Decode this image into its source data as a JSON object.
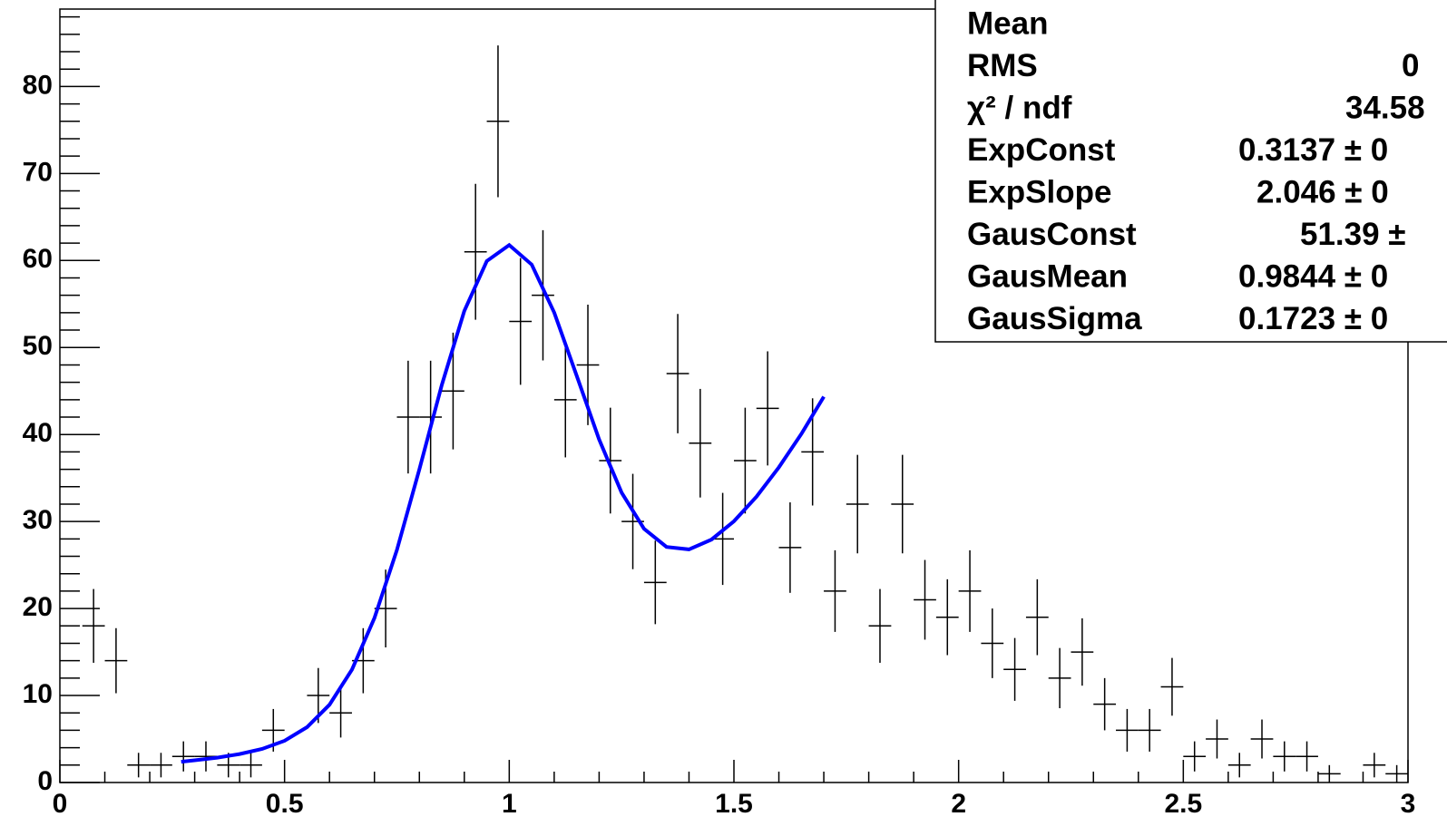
{
  "chart_data": {
    "type": "errorbar",
    "color": "#000000",
    "bin_width": 0.05,
    "x": [
      0.075,
      0.125,
      0.175,
      0.225,
      0.275,
      0.325,
      0.375,
      0.425,
      0.475,
      0.575,
      0.625,
      0.675,
      0.725,
      0.775,
      0.825,
      0.875,
      0.925,
      0.975,
      1.025,
      1.075,
      1.125,
      1.175,
      1.225,
      1.275,
      1.325,
      1.375,
      1.425,
      1.475,
      1.525,
      1.575,
      1.625,
      1.675,
      1.725,
      1.775,
      1.825,
      1.875,
      1.925,
      1.975,
      2.025,
      2.075,
      2.125,
      2.175,
      2.225,
      2.275,
      2.325,
      2.375,
      2.425,
      2.475,
      2.525,
      2.575,
      2.625,
      2.675,
      2.725,
      2.775,
      2.825,
      2.925,
      2.975
    ],
    "values": [
      18,
      14,
      2,
      2,
      3,
      3,
      2,
      2,
      6,
      10,
      8,
      14,
      20,
      42,
      42,
      45,
      61,
      76,
      53,
      56,
      44,
      48,
      37,
      30,
      23,
      47,
      39,
      28,
      37,
      43,
      27,
      38,
      22,
      32,
      18,
      32,
      21,
      19,
      22,
      16,
      13,
      19,
      12,
      15,
      9,
      6,
      6,
      11,
      3,
      5,
      2,
      5,
      3,
      3,
      1,
      2,
      1
    ],
    "errors": [
      4.24,
      3.74,
      1.41,
      1.41,
      1.73,
      1.73,
      1.41,
      1.41,
      2.45,
      3.16,
      2.83,
      3.74,
      4.47,
      6.48,
      6.48,
      6.71,
      7.81,
      8.72,
      7.28,
      7.48,
      6.63,
      6.93,
      6.08,
      5.48,
      4.8,
      6.86,
      6.24,
      5.29,
      6.08,
      6.56,
      5.2,
      6.16,
      4.69,
      5.66,
      4.24,
      5.66,
      4.58,
      4.36,
      4.69,
      4,
      3.61,
      4.36,
      3.46,
      3.87,
      3,
      2.45,
      2.45,
      3.32,
      1.73,
      2.24,
      1.41,
      2.24,
      1.73,
      1.73,
      1,
      1.41,
      1
    ],
    "fit": {
      "color": "#0000ff",
      "x": [
        0.27,
        0.3,
        0.35,
        0.4,
        0.45,
        0.5,
        0.55,
        0.6,
        0.65,
        0.7,
        0.75,
        0.8,
        0.85,
        0.9,
        0.95,
        1.0,
        1.05,
        1.1,
        1.15,
        1.2,
        1.25,
        1.3,
        1.35,
        1.4,
        1.45,
        1.5,
        1.55,
        1.6,
        1.65,
        1.7
      ],
      "values": [
        2.39,
        2.55,
        2.86,
        3.27,
        3.86,
        4.79,
        6.36,
        8.94,
        12.99,
        18.89,
        26.72,
        36.01,
        45.7,
        54.21,
        59.94,
        61.77,
        59.53,
        54.02,
        46.77,
        39.43,
        33.32,
        29.16,
        27.08,
        26.8,
        27.92,
        30.03,
        32.85,
        36.23,
        40.06,
        44.35
      ]
    },
    "xlim": [
      0,
      3
    ],
    "ylim": [
      0,
      88.9
    ],
    "xticks": [
      0,
      0.5,
      1,
      1.5,
      2,
      2.5,
      3
    ],
    "yticks": [
      0,
      10,
      20,
      30,
      40,
      50,
      60,
      70,
      80
    ],
    "xminorticks": [
      0.1,
      0.2,
      0.3,
      0.4,
      0.6,
      0.7,
      0.8,
      0.9,
      1.1,
      1.2,
      1.3,
      1.4,
      1.6,
      1.7,
      1.8,
      1.9,
      2.1,
      2.2,
      2.3,
      2.4,
      2.6,
      2.7,
      2.8,
      2.9
    ],
    "yminorticks": [
      2,
      4,
      6,
      8,
      12,
      14,
      16,
      18,
      22,
      24,
      26,
      28,
      32,
      34,
      36,
      38,
      42,
      44,
      46,
      48,
      52,
      54,
      56,
      58,
      62,
      64,
      66,
      68,
      72,
      74,
      76,
      78,
      82,
      84,
      86,
      88
    ],
    "stats": [
      {
        "label": "Mean"
      },
      {
        "label": "RMS",
        "value": "0"
      },
      {
        "label": "χ² / ndf",
        "value": "34.58"
      },
      {
        "label": "ExpConst",
        "value": "0.3137 ± 0"
      },
      {
        "label": "ExpSlope",
        "value": "2.046 ± 0"
      },
      {
        "label": "GausConst",
        "value": "51.39 ±"
      },
      {
        "label": "GausMean",
        "value": "0.9844 ± 0"
      },
      {
        "label": "GausSigma",
        "value": "0.1723 ± 0"
      }
    ]
  }
}
